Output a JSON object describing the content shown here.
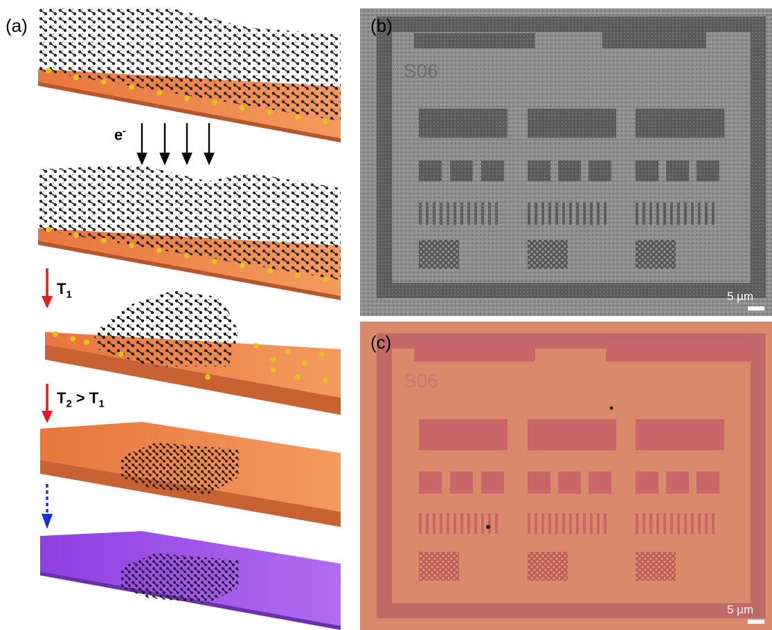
{
  "figure": {
    "panels": {
      "a": {
        "label": "(a)"
      },
      "b": {
        "label": "(b)",
        "scale_bar": "5 µm",
        "pattern_text": "S06"
      },
      "c": {
        "label": "(c)",
        "scale_bar": "5 µm",
        "pattern_text": "S06"
      }
    },
    "schematic": {
      "electron": "e",
      "electron_sup": "-",
      "step1": "T",
      "step1_sub": "1",
      "step2_a": "T",
      "step2_sub_a": "2",
      "step2_mid": " > T",
      "step2_sub_b": "1"
    },
    "colors": {
      "substrate": "#e8763d",
      "substrate_final": "#9b4de8",
      "molecule": "#1e1e1e",
      "atom": "#e3c21f",
      "arrow_thermal": "#e31b1b",
      "arrow_transfer": "#1630e6",
      "sem_background": "#8a8a8a",
      "optical_background": "#d98a6a"
    }
  }
}
